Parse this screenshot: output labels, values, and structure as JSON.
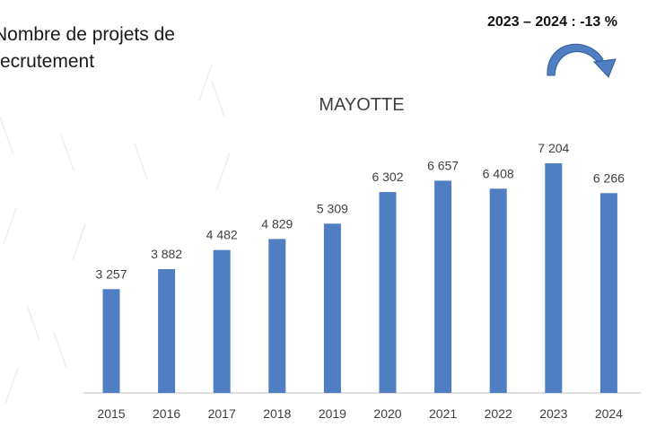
{
  "slide": {
    "title": "Nombre de projets de recrutement",
    "variation": "2023 – 2024 : -13 %"
  },
  "colors": {
    "bar": "#4F7EC2",
    "arrow": "#4F7EC2",
    "axis": "#BFBFBF",
    "text": "#404040"
  },
  "chart_data": {
    "type": "bar",
    "title": "MAYOTTE",
    "categories": [
      "2015",
      "2016",
      "2017",
      "2018",
      "2019",
      "2020",
      "2021",
      "2022",
      "2023",
      "2024"
    ],
    "values": [
      3257,
      3882,
      4482,
      4829,
      5309,
      6302,
      6657,
      6408,
      7204,
      6266
    ],
    "data_labels": [
      "3 257",
      "3 882",
      "4 482",
      "4 829",
      "5 309",
      "6 302",
      "6 657",
      "6 408",
      "7 204",
      "6 266"
    ],
    "xlabel": "",
    "ylabel": "",
    "ylim": [
      0,
      7204
    ],
    "grid": false,
    "legend": "none"
  }
}
